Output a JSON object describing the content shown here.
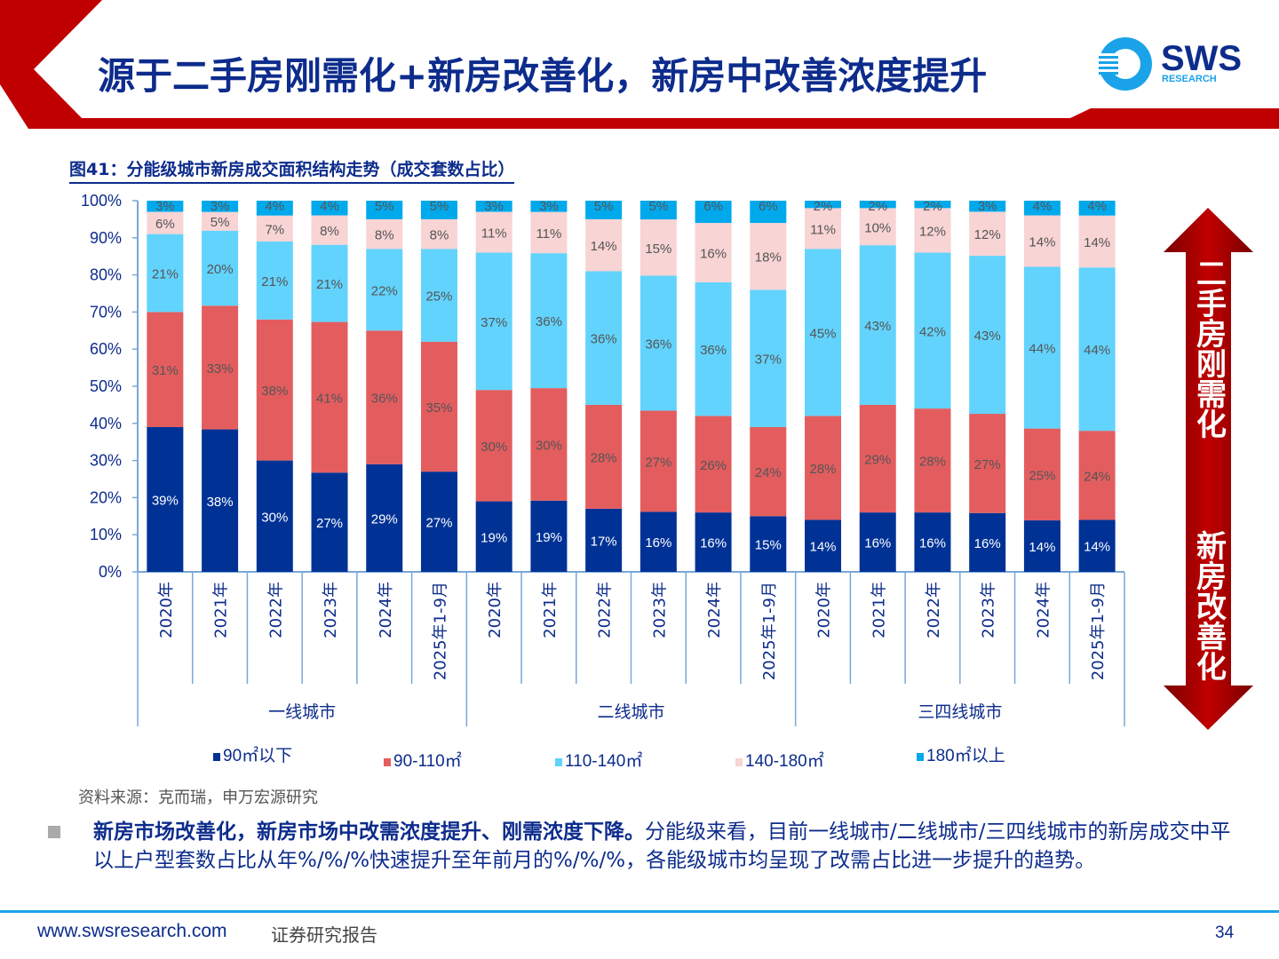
{
  "header": {
    "title": "源于二手房刚需化+新房改善化，新房中改善浓度提升",
    "logo_text": "SWS",
    "logo_subtext": "RESEARCH",
    "accent_color": "#c00000",
    "title_color": "#0d2c8c"
  },
  "figure_title": "图41：分能级城市新房成交面积结构走势（成交套数占比）",
  "side_arrow": {
    "top_text": "二手房刚需化",
    "bottom_text": "新房改善化",
    "color": "#b00000"
  },
  "chart_data": {
    "type": "bar",
    "stacked": true,
    "title": "",
    "xlabel": "",
    "ylabel": "",
    "ylim": [
      0,
      100
    ],
    "y_ticks": [
      "0%",
      "10%",
      "20%",
      "30%",
      "40%",
      "50%",
      "60%",
      "70%",
      "80%",
      "90%",
      "100%"
    ],
    "groups": [
      {
        "label": "一线城市",
        "categories": [
          "2020年",
          "2021年",
          "2022年",
          "2023年",
          "2024年",
          "2025年1-9月"
        ]
      },
      {
        "label": "二线城市",
        "categories": [
          "2020年",
          "2021年",
          "2022年",
          "2023年",
          "2024年",
          "2025年1-9月"
        ]
      },
      {
        "label": "三四线城市",
        "categories": [
          "2020年",
          "2021年",
          "2022年",
          "2023年",
          "2024年",
          "2025年1-9月"
        ]
      }
    ],
    "series": [
      {
        "name": "90㎡以下",
        "color": "#003296",
        "label_color": "#ffffff",
        "values": [
          39,
          38,
          30,
          27,
          29,
          27,
          19,
          19,
          17,
          16,
          16,
          15,
          14,
          16,
          16,
          16,
          14,
          14
        ]
      },
      {
        "name": "90-110㎡",
        "color": "#e35d5f",
        "label_color": "#555555",
        "values": [
          31,
          33,
          38,
          41,
          36,
          35,
          30,
          30,
          28,
          27,
          26,
          24,
          28,
          29,
          28,
          27,
          25,
          24
        ]
      },
      {
        "name": "110-140㎡",
        "color": "#62d3fd",
        "label_color": "#555555",
        "values": [
          21,
          20,
          21,
          21,
          22,
          25,
          37,
          36,
          36,
          36,
          36,
          37,
          45,
          43,
          42,
          43,
          44,
          44
        ]
      },
      {
        "name": "140-180㎡",
        "color": "#f8d4d4",
        "label_color": "#555555",
        "values": [
          6,
          5,
          7,
          8,
          8,
          8,
          11,
          11,
          14,
          15,
          16,
          18,
          11,
          10,
          12,
          12,
          14,
          14
        ]
      },
      {
        "name": "180㎡以上",
        "color": "#00a9ec",
        "label_color": "#555555",
        "values": [
          3,
          3,
          4,
          4,
          5,
          5,
          3,
          3,
          5,
          5,
          6,
          6,
          2,
          2,
          2,
          3,
          4,
          4
        ]
      }
    ],
    "legend_position": "bottom",
    "grid": false
  },
  "source": "资料来源：克而瑞，申万宏源研究",
  "body": {
    "bold_text": "新房市场改善化，新房市场中改需浓度提升、刚需浓度下降。",
    "text": "分能级来看，目前一线城市/二线城市/三四线城市的新房成交中平以上户型套数占比从年%/%/%快速提升至年前月的%/%/%，各能级城市均呈现了改需占比进一步提升的趋势。"
  },
  "footer": {
    "url": "www.swsresearch.com",
    "label": "证券研究报告",
    "page": "34"
  }
}
